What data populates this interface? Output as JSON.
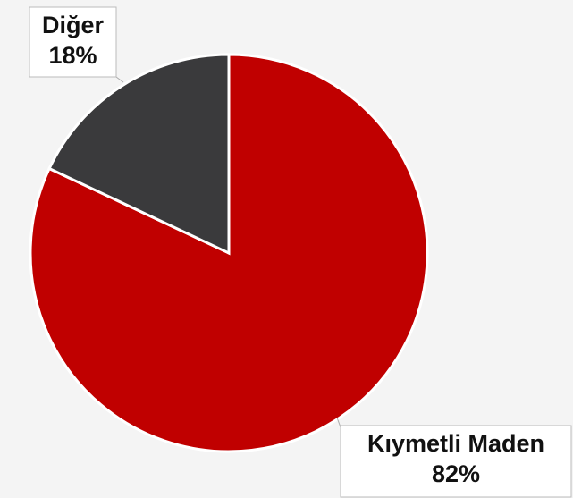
{
  "chart_data": {
    "type": "pie",
    "categories": [
      "Kıymetli Maden",
      "Diğer"
    ],
    "values": [
      82,
      18
    ],
    "value_labels": [
      "82%",
      "18%"
    ],
    "colors": [
      "#c00000",
      "#3a3a3c"
    ]
  }
}
